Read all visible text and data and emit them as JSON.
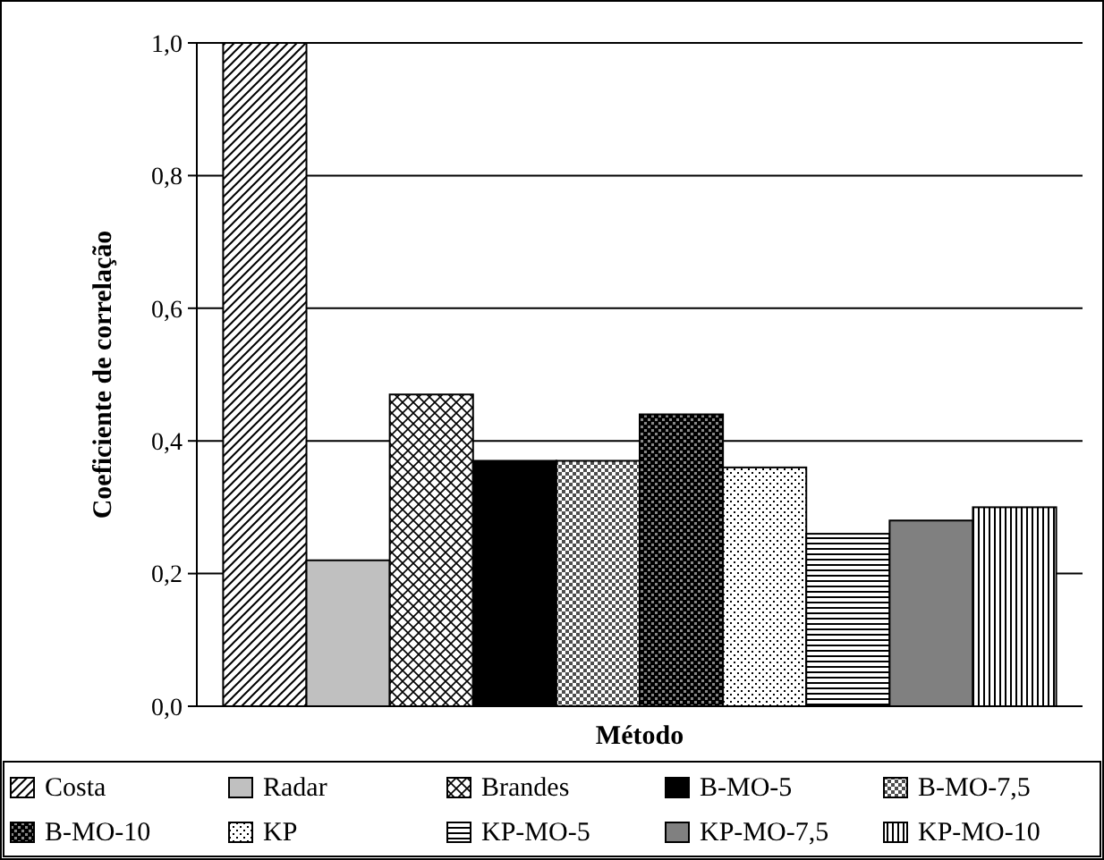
{
  "chart_data": {
    "type": "bar",
    "xlabel": "Método",
    "ylabel": "Coeficiente de correlação",
    "categories": [
      null
    ],
    "ylim": [
      0,
      1
    ],
    "yticks": [
      {
        "value": 0,
        "label": "0,0"
      },
      {
        "value": 0.2,
        "label": "0,2"
      },
      {
        "value": 0.4,
        "label": "0,4"
      },
      {
        "value": 0.6,
        "label": "0,6"
      },
      {
        "value": 0.8,
        "label": "0,8"
      },
      {
        "value": 1,
        "label": "1,0"
      }
    ],
    "grid": "y",
    "legend": "bottom",
    "series": [
      {
        "name": "Costa",
        "color": "#000000",
        "values": [
          1.0
        ]
      },
      {
        "name": "Radar",
        "color": "#c0c0c0",
        "values": [
          0.22
        ]
      },
      {
        "name": "Brandes",
        "color": "#000000",
        "values": [
          0.47
        ]
      },
      {
        "name": "B-MO-5",
        "color": "#000000",
        "values": [
          0.37
        ]
      },
      {
        "name": "B-MO-7,5",
        "color": "#000000",
        "values": [
          0.37
        ]
      },
      {
        "name": "B-MO-10",
        "color": "#000000",
        "values": [
          0.44
        ]
      },
      {
        "name": "KP",
        "color": "#000000",
        "values": [
          0.36
        ]
      },
      {
        "name": "KP-MO-5",
        "color": "#000000",
        "values": [
          0.26
        ]
      },
      {
        "name": "KP-MO-7,5",
        "color": "#808080",
        "values": [
          0.28
        ]
      },
      {
        "name": "KP-MO-10",
        "color": "#000000",
        "values": [
          0.3
        ]
      }
    ]
  }
}
